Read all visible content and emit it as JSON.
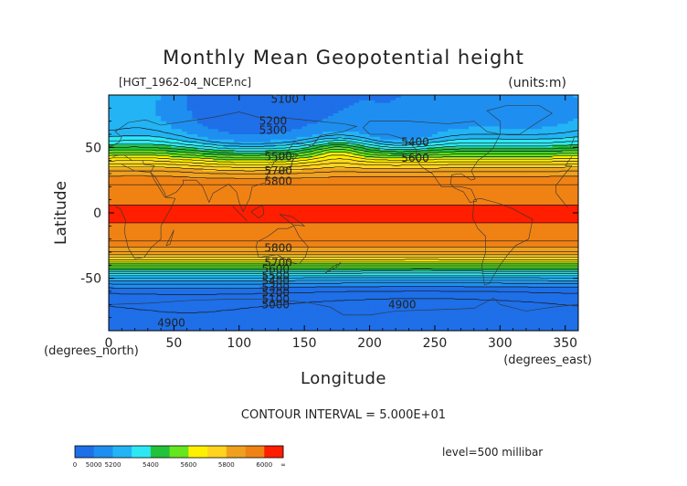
{
  "chart_data": {
    "type": "heatmap",
    "title": "Monthly Mean Geopotential height",
    "file_label": "[HGT_1962-04_NCEP.nc]",
    "units_label": "(units:m)",
    "xlabel": "Longitude",
    "ylabel": "Latitude",
    "x_unit_label": "(degrees_east)",
    "y_unit_label": "(degrees_north)",
    "xlim": [
      0,
      360
    ],
    "ylim": [
      -90,
      90
    ],
    "x_ticks": [
      0,
      50,
      100,
      150,
      200,
      250,
      300,
      350
    ],
    "y_ticks": [
      -50,
      0,
      50
    ],
    "contour_interval_text": "CONTOUR INTERVAL = 5.000E+01",
    "level_text": "level=500 millibar",
    "colorbar": {
      "colors": [
        "#1e6fe8",
        "#1e8ff0",
        "#22b4f5",
        "#2de8f2",
        "#22c23a",
        "#66e61e",
        "#fff000",
        "#ffd41e",
        "#f0a01e",
        "#f08214",
        "#ff1e00"
      ],
      "tick_labels": [
        "0",
        "5000",
        "5200",
        "5400",
        "5600",
        "5800",
        "6000",
        "∞"
      ]
    },
    "contour_labels": [
      {
        "text": "5100",
        "lon": 135,
        "lat": 87
      },
      {
        "text": "5200",
        "lon": 126,
        "lat": 70
      },
      {
        "text": "5300",
        "lon": 126,
        "lat": 63
      },
      {
        "text": "5400",
        "lon": 235,
        "lat": 54
      },
      {
        "text": "5500",
        "lon": 130,
        "lat": 43
      },
      {
        "text": "5600",
        "lon": 235,
        "lat": 42
      },
      {
        "text": "5700",
        "lon": 130,
        "lat": 32
      },
      {
        "text": "5800",
        "lon": 130,
        "lat": 24
      },
      {
        "text": "5800",
        "lon": 130,
        "lat": -27
      },
      {
        "text": "5700",
        "lon": 130,
        "lat": -38
      },
      {
        "text": "5600",
        "lon": 128,
        "lat": -43
      },
      {
        "text": "5500",
        "lon": 128,
        "lat": -48
      },
      {
        "text": "5400",
        "lon": 128,
        "lat": -52
      },
      {
        "text": "5300",
        "lon": 128,
        "lat": -57
      },
      {
        "text": "5200",
        "lon": 128,
        "lat": -61
      },
      {
        "text": "5100",
        "lon": 128,
        "lat": -66
      },
      {
        "text": "5000",
        "lon": 128,
        "lat": -70
      },
      {
        "text": "4900",
        "lon": 225,
        "lat": -70
      },
      {
        "text": "4900",
        "lon": 48,
        "lat": -84
      }
    ]
  }
}
